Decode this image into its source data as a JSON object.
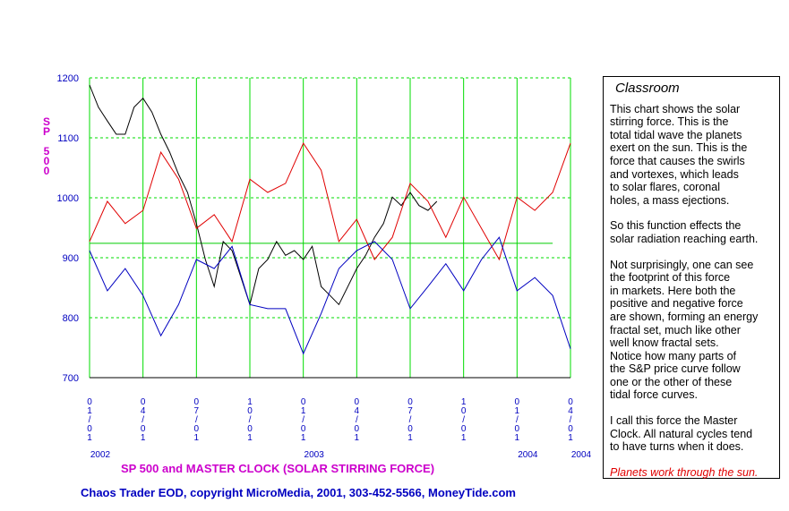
{
  "chart_data": {
    "type": "line",
    "title": "SP 500 and MASTER CLOCK  (SOLAR STIRRING FORCE)",
    "y_label": "SP 500",
    "footer": "Chaos Trader EOD, copyright MicroMedia, 2001, 303-452-5566, MoneyTide.com",
    "xlim": [
      0,
      27
    ],
    "xticks": [
      {
        "value": 0,
        "label": "01/01"
      },
      {
        "value": 3,
        "label": "04/01"
      },
      {
        "value": 6,
        "label": "07/01"
      },
      {
        "value": 9,
        "label": "10/01"
      },
      {
        "value": 12,
        "label": "01/01"
      },
      {
        "value": 15,
        "label": "04/01"
      },
      {
        "value": 18,
        "label": "07/01"
      },
      {
        "value": 21,
        "label": "10/01"
      },
      {
        "value": 24,
        "label": "01/01"
      },
      {
        "value": 27,
        "label": "04/01"
      }
    ],
    "year_labels": [
      {
        "value": 0,
        "label": "2002"
      },
      {
        "value": 12,
        "label": "2003"
      },
      {
        "value": 24,
        "label": "2004"
      },
      {
        "value": 27,
        "label": "2004"
      }
    ],
    "ylim": [
      700,
      1200
    ],
    "yticks": [
      700,
      800,
      900,
      1000,
      1100,
      1200
    ],
    "grid": true,
    "grid_color": "#00dd00",
    "hline": {
      "value": 924,
      "x_end": 26,
      "color": "#00cc00"
    },
    "series": [
      {
        "color": "#000000",
        "x": [
          0,
          0.5,
          1,
          1.5,
          2,
          2.5,
          3,
          3.5,
          4,
          4.5,
          5,
          5.5,
          6,
          6.5,
          7,
          7.5,
          8,
          8.5,
          9,
          9.5,
          10,
          10.5,
          11,
          11.5,
          12,
          12.5,
          13,
          13.5,
          14,
          14.5,
          15,
          15.5,
          16,
          16.5,
          17,
          17.5,
          18,
          18.5,
          19,
          19.5
        ],
        "values": [
          1188,
          1151,
          1128,
          1106,
          1106,
          1151,
          1166,
          1143,
          1106,
          1076,
          1039,
          1009,
          957,
          897,
          852,
          927,
          912,
          867,
          822,
          882,
          897,
          927,
          904,
          912,
          897,
          919,
          852,
          837,
          822,
          852,
          882,
          904,
          934,
          957,
          1001,
          987,
          1009,
          987,
          979,
          994
        ]
      },
      {
        "color": "#e00000",
        "x": [
          0,
          1,
          2,
          3,
          4,
          5,
          6,
          7,
          8,
          9,
          10,
          11,
          12,
          13,
          14,
          15,
          16,
          17,
          18,
          19,
          20,
          21,
          22,
          23,
          24,
          25,
          26,
          27
        ],
        "values": [
          927,
          994,
          957,
          979,
          1076,
          1031,
          949,
          972,
          927,
          1031,
          1009,
          1024,
          1091,
          1046,
          927,
          964,
          897,
          934,
          1024,
          994,
          934,
          1001,
          949,
          897,
          1001,
          979,
          1009,
          1091
        ]
      },
      {
        "color": "#0000c0",
        "x": [
          0,
          1,
          2,
          3,
          4,
          5,
          6,
          7,
          8,
          9,
          10,
          11,
          12,
          13,
          14,
          15,
          16,
          17,
          18,
          19,
          20,
          21,
          22,
          23,
          24,
          25,
          26,
          27
        ],
        "values": [
          912,
          845,
          882,
          837,
          770,
          822,
          897,
          882,
          919,
          822,
          815,
          815,
          740,
          807,
          882,
          912,
          927,
          897,
          815,
          852,
          890,
          845,
          897,
          934,
          845,
          867,
          837,
          748
        ]
      }
    ]
  },
  "sidebar": {
    "title": "Classroom",
    "paragraphs": [
      [
        "This chart shows the solar",
        "stirring force. This is the",
        "total tidal wave the planets",
        "exert on the sun. This is the",
        "force that causes the swirls",
        "and vortexes, which leads",
        "to solar flares, coronal",
        "holes, a mass ejections."
      ],
      [
        "So this function effects the",
        "solar radiation reaching earth."
      ],
      [
        "Not surprisingly, one can see",
        "the footprint of this force",
        "in markets. Here both the",
        "positive and negative force",
        "are shown, forming an energy",
        "fractal set, much like other",
        "well know fractal sets.",
        "Notice how many parts of",
        "the S&P price curve follow",
        "one or the other of these",
        "tidal force curves."
      ],
      [
        "I call this force the Master",
        "Clock. All natural cycles tend",
        "to have turns when it does."
      ]
    ],
    "note": "Planets work through the sun."
  }
}
